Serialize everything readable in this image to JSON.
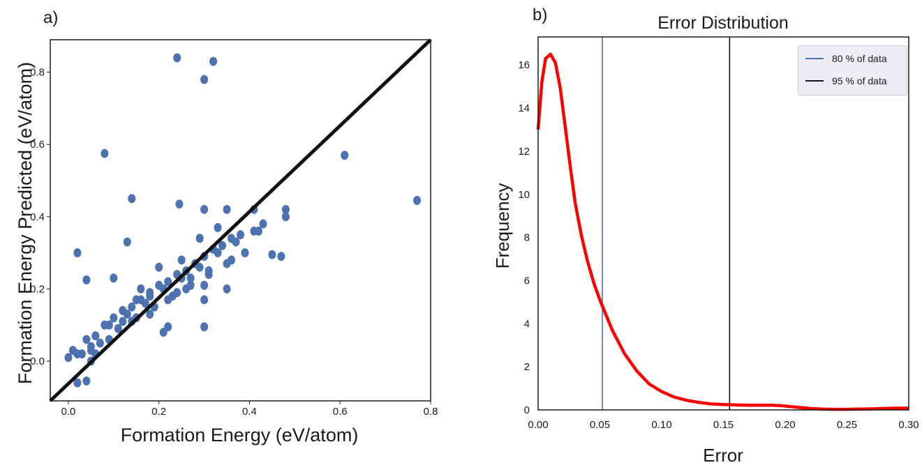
{
  "panels": {
    "a_label": "a)",
    "b_label": "b)"
  },
  "chart_data": [
    {
      "type": "scatter",
      "title": "",
      "xlabel": "Formation Energy (eV/atom)",
      "ylabel": "Formation Energy Predicted (eV/atom)",
      "xlim": [
        -0.04,
        0.8
      ],
      "ylim": [
        -0.11,
        0.89
      ],
      "xticks": [
        "0.0",
        "0.2",
        "0.4",
        "0.6",
        "0.8"
      ],
      "yticks": [
        "0.0",
        "0.2",
        "0.4",
        "0.6",
        "0.8"
      ],
      "grid": false,
      "color": "#4c72b0",
      "reference_line": {
        "x": [
          -0.04,
          0.8
        ],
        "y": [
          -0.11,
          0.89
        ],
        "color": "#111111"
      },
      "series": [
        {
          "x": [
            0.24,
            0.32,
            0.3,
            0.08,
            0.61,
            0.77,
            0.14,
            0.245,
            0.3,
            0.35,
            0.41,
            0.48,
            0.48,
            0.02,
            0.04,
            0.13,
            0.1,
            0.45,
            0.47,
            0.22,
            0.3,
            0.3,
            0.21,
            0.35,
            0.02,
            0.04,
            0.05,
            0.06,
            0.02,
            0.0,
            0.01,
            0.04,
            0.08,
            0.12,
            0.16,
            0.2,
            0.24,
            0.28,
            0.32,
            0.36,
            0.1,
            0.14,
            0.18,
            0.22,
            0.26,
            0.3,
            0.34,
            0.38,
            0.06,
            0.09,
            0.13,
            0.17,
            0.21,
            0.25,
            0.29,
            0.33,
            0.37,
            0.41,
            0.05,
            0.11,
            0.15,
            0.19,
            0.23,
            0.27,
            0.31,
            0.35,
            0.39,
            0.43,
            0.03,
            0.07,
            0.12,
            0.18,
            0.24,
            0.3,
            0.36,
            0.42,
            0.15,
            0.2,
            0.25,
            0.29,
            0.33,
            0.26,
            0.22,
            0.18,
            0.14,
            0.09,
            0.05,
            0.16,
            0.27,
            0.31
          ],
          "y": [
            0.84,
            0.83,
            0.78,
            0.575,
            0.57,
            0.445,
            0.45,
            0.435,
            0.42,
            0.42,
            0.42,
            0.42,
            0.4,
            0.3,
            0.225,
            0.33,
            0.23,
            0.295,
            0.29,
            0.095,
            0.095,
            0.17,
            0.08,
            0.2,
            -0.06,
            -0.055,
            0.0,
            0.02,
            0.02,
            0.01,
            0.03,
            0.06,
            0.1,
            0.14,
            0.17,
            0.21,
            0.24,
            0.27,
            0.31,
            0.34,
            0.12,
            0.15,
            0.19,
            0.22,
            0.25,
            0.29,
            0.32,
            0.35,
            0.07,
            0.1,
            0.13,
            0.16,
            0.2,
            0.23,
            0.26,
            0.3,
            0.33,
            0.36,
            0.04,
            0.09,
            0.12,
            0.15,
            0.18,
            0.21,
            0.24,
            0.27,
            0.3,
            0.38,
            0.02,
            0.05,
            0.11,
            0.18,
            0.19,
            0.21,
            0.28,
            0.36,
            0.17,
            0.26,
            0.28,
            0.34,
            0.37,
            0.2,
            0.17,
            0.13,
            0.11,
            0.06,
            0.03,
            0.2,
            0.23,
            0.25
          ]
        }
      ]
    },
    {
      "type": "line",
      "title": "Error Distribution",
      "xlabel": "Error",
      "ylabel": "Frequency",
      "xlim": [
        0.0,
        0.3
      ],
      "ylim": [
        0,
        17.3
      ],
      "xticks": [
        "0.00",
        "0.05",
        "0.10",
        "0.15",
        "0.20",
        "0.25",
        "0.30"
      ],
      "yticks": [
        "0",
        "2",
        "4",
        "6",
        "8",
        "10",
        "12",
        "14",
        "16"
      ],
      "grid": false,
      "legend_position": "top-right",
      "series": [
        {
          "color": "#ff0000",
          "x": [
            0.0,
            0.003,
            0.006,
            0.01,
            0.014,
            0.018,
            0.022,
            0.026,
            0.03,
            0.035,
            0.04,
            0.045,
            0.05,
            0.055,
            0.06,
            0.07,
            0.08,
            0.09,
            0.1,
            0.11,
            0.12,
            0.13,
            0.14,
            0.15,
            0.16,
            0.17,
            0.18,
            0.19,
            0.2,
            0.21,
            0.22,
            0.23,
            0.24,
            0.25,
            0.26,
            0.27,
            0.28,
            0.29,
            0.3
          ],
          "y": [
            13.0,
            15.2,
            16.3,
            16.5,
            16.1,
            14.9,
            13.1,
            11.3,
            9.6,
            8.1,
            6.9,
            5.9,
            5.1,
            4.4,
            3.7,
            2.6,
            1.8,
            1.2,
            0.85,
            0.6,
            0.45,
            0.35,
            0.28,
            0.25,
            0.23,
            0.22,
            0.22,
            0.22,
            0.18,
            0.12,
            0.07,
            0.04,
            0.03,
            0.03,
            0.04,
            0.05,
            0.07,
            0.08,
            0.08
          ]
        },
        {
          "name": "80 % of data",
          "color": "#4c72b0",
          "x": [
            0.052,
            0.052
          ],
          "y": [
            0,
            17.3
          ]
        },
        {
          "name": "95 % of data",
          "color": "#111111",
          "x": [
            0.155,
            0.155
          ],
          "y": [
            0,
            17.3
          ]
        }
      ]
    }
  ]
}
